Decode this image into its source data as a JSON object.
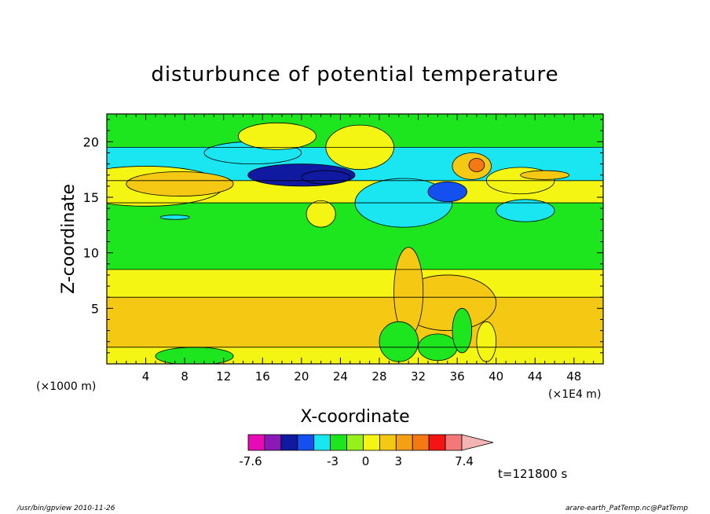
{
  "chart_data": {
    "type": "heatmap",
    "title": "disturbunce of potential temperature",
    "xlabel": "X-coordinate",
    "ylabel": "Z-coordinate",
    "x_unit_left": "(×1000 m)",
    "x_unit_right": "(×1E4 m)",
    "xlim": [
      0,
      51
    ],
    "ylim": [
      0,
      22.5
    ],
    "x_ticks": [
      "4",
      "8",
      "12",
      "16",
      "20",
      "24",
      "28",
      "32",
      "36",
      "40",
      "44",
      "48"
    ],
    "y_ticks": [
      "5",
      "10",
      "15",
      "20"
    ],
    "colorbar": {
      "colors": [
        "#e60bb4",
        "#8a19b8",
        "#101aa0",
        "#1450f0",
        "#19e6f0",
        "#1ee61e",
        "#96f01a",
        "#f5f514",
        "#f5c814",
        "#f5a014",
        "#f57814",
        "#f51414",
        "#f57878",
        "#f5b4b4"
      ],
      "tick_labels": [
        "-7.6",
        "-3",
        "0",
        "3",
        "7.4"
      ],
      "levels": [
        -7.6,
        -6.6,
        -5.6,
        -4.6,
        -3.6,
        -3,
        -1.5,
        0,
        1.5,
        3,
        4,
        5,
        6,
        7.4
      ]
    },
    "annotation": "t=121800 s",
    "bands": [
      {
        "z_low": 0.0,
        "z_high": 1.5,
        "color": "#f5f514"
      },
      {
        "z_low": 1.5,
        "z_high": 6.0,
        "color": "#f5c814"
      },
      {
        "z_low": 6.0,
        "z_high": 8.5,
        "color": "#f5f514"
      },
      {
        "z_low": 8.5,
        "z_high": 14.5,
        "color": "#1ee61e"
      },
      {
        "z_low": 14.5,
        "z_high": 16.5,
        "color": "#f5f514"
      },
      {
        "z_low": 16.5,
        "z_high": 19.5,
        "color": "#19e6f0"
      },
      {
        "z_low": 19.5,
        "z_high": 22.5,
        "color": "#1ee61e"
      }
    ],
    "blobs": [
      {
        "x": 4,
        "z": 16,
        "rx": 8,
        "rz": 1.8,
        "color": "#f5f514"
      },
      {
        "x": 7.5,
        "z": 16.2,
        "rx": 5.5,
        "rz": 1.1,
        "color": "#f5c814"
      },
      {
        "x": 15,
        "z": 19.0,
        "rx": 5,
        "rz": 1.0,
        "color": "#19e6f0"
      },
      {
        "x": 20,
        "z": 17.0,
        "rx": 5.5,
        "rz": 1.0,
        "color": "#101aa0"
      },
      {
        "x": 22.5,
        "z": 16.8,
        "rx": 2.5,
        "rz": 0.6,
        "color": "#101aa0"
      },
      {
        "x": 30.5,
        "z": 14.5,
        "rx": 5,
        "rz": 2.2,
        "color": "#19e6f0"
      },
      {
        "x": 35,
        "z": 15.5,
        "rx": 2,
        "rz": 0.9,
        "color": "#1450f0"
      },
      {
        "x": 37.5,
        "z": 17.8,
        "rx": 2,
        "rz": 1.2,
        "color": "#f5c814"
      },
      {
        "x": 38,
        "z": 17.9,
        "rx": 0.8,
        "rz": 0.6,
        "color": "#f57814"
      },
      {
        "x": 42.5,
        "z": 16.5,
        "rx": 3.5,
        "rz": 1.2,
        "color": "#f5f514"
      },
      {
        "x": 43,
        "z": 13.8,
        "rx": 3,
        "rz": 1.0,
        "color": "#19e6f0"
      },
      {
        "x": 17.5,
        "z": 20.5,
        "rx": 4,
        "rz": 1.2,
        "color": "#f5f514"
      },
      {
        "x": 26,
        "z": 19.5,
        "rx": 3.5,
        "rz": 2.0,
        "color": "#f5f514"
      },
      {
        "x": 22,
        "z": 13.5,
        "rx": 1.5,
        "rz": 1.2,
        "color": "#f5f514"
      },
      {
        "x": 7,
        "z": 13.2,
        "rx": 1.5,
        "rz": 0.2,
        "color": "#19e6f0"
      },
      {
        "x": 35,
        "z": 5.5,
        "rx": 5,
        "rz": 2.5,
        "color": "#f5c814"
      },
      {
        "x": 31,
        "z": 6.5,
        "rx": 1.5,
        "rz": 4.0,
        "color": "#f5c814"
      },
      {
        "x": 30,
        "z": 2,
        "rx": 2,
        "rz": 1.8,
        "color": "#1ee61e"
      },
      {
        "x": 34,
        "z": 1.5,
        "rx": 2,
        "rz": 1.2,
        "color": "#1ee61e"
      },
      {
        "x": 36.5,
        "z": 3,
        "rx": 1,
        "rz": 2.0,
        "color": "#1ee61e"
      },
      {
        "x": 39,
        "z": 2,
        "rx": 1,
        "rz": 1.8,
        "color": "#f5f514"
      },
      {
        "x": 9,
        "z": 0.7,
        "rx": 4,
        "rz": 0.8,
        "color": "#1ee61e"
      },
      {
        "x": 45,
        "z": 17,
        "rx": 2.5,
        "rz": 0.4,
        "color": "#f5c814"
      }
    ]
  },
  "footer_left": "/usr/bin/gpview 2010-11-26",
  "footer_right": "arare-earth_PatTemp.nc@PatTemp"
}
